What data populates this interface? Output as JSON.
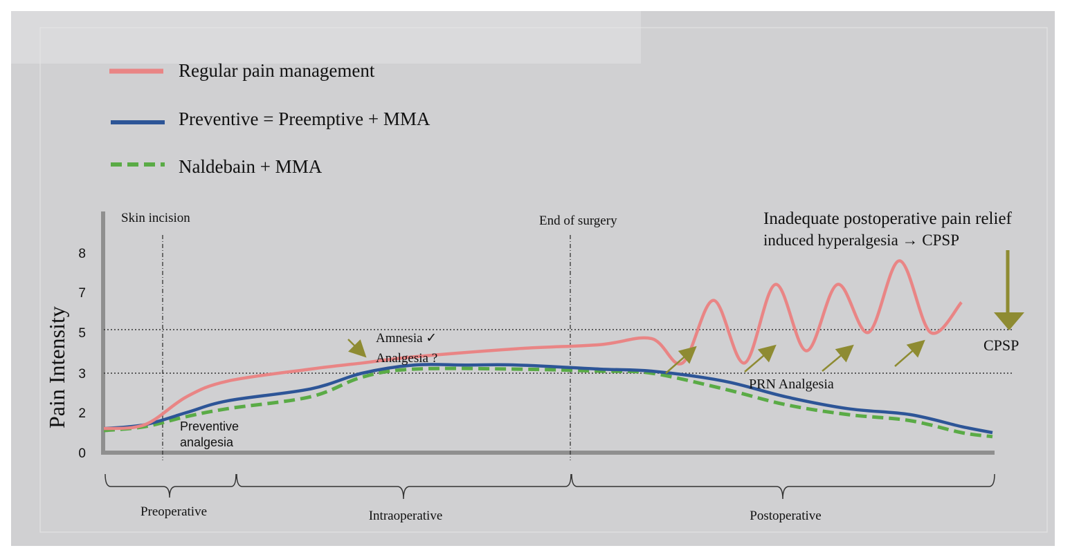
{
  "legend": {
    "regular": "Regular pain management",
    "preventive": "Preventive = Preemptive + MMA",
    "naldebain": "Naldebain + MMA"
  },
  "colors": {
    "regular": "#e98585",
    "preventive": "#2d5597",
    "naldebain": "#5aab46",
    "arrow": "#8e8b32",
    "background": "#d0d0d2"
  },
  "annotations": {
    "skin_incision": "Skin incision",
    "end_of_surgery": "End of surgery",
    "inadequate_line1": "Inadequate postoperative pain relief",
    "inadequate_line2": "induced hyperalgesia → CPSP",
    "amnesia": "Amnesia ✓",
    "analgesia_q": "Analgesia ?",
    "preventive_line1": "Preventive",
    "preventive_line2": "analgesia",
    "prn": "PRN Analgesia",
    "cpsp": "CPSP"
  },
  "phases": {
    "preoperative": "Preoperative",
    "intraoperative": "Intraoperative",
    "postoperative": "Postoperative"
  },
  "chart_data": {
    "type": "line",
    "ylabel": "Pain Intensity",
    "yticks": [
      "0",
      "2",
      "3",
      "5",
      "7",
      "8"
    ],
    "reference_lines": [
      3,
      5
    ],
    "series": [
      {
        "name": "Regular pain management",
        "points": [
          [
            0,
            1.2
          ],
          [
            0.04,
            1.4
          ],
          [
            0.08,
            2.4
          ],
          [
            0.12,
            2.8
          ],
          [
            0.2,
            3.2
          ],
          [
            0.25,
            3.5
          ],
          [
            0.3,
            3.8
          ],
          [
            0.4,
            4.2
          ],
          [
            0.48,
            4.4
          ],
          [
            0.53,
            4.7
          ],
          [
            0.56,
            3.5
          ],
          [
            0.59,
            6.6
          ],
          [
            0.62,
            3.5
          ],
          [
            0.65,
            7.2
          ],
          [
            0.68,
            4.1
          ],
          [
            0.71,
            7.2
          ],
          [
            0.74,
            5.0
          ],
          [
            0.77,
            7.8
          ],
          [
            0.8,
            5.0
          ],
          [
            0.83,
            6.5
          ]
        ]
      },
      {
        "name": "Preventive = Preemptive + MMA",
        "points": [
          [
            0,
            1.2
          ],
          [
            0.04,
            1.4
          ],
          [
            0.08,
            2.0
          ],
          [
            0.12,
            2.3
          ],
          [
            0.2,
            2.6
          ],
          [
            0.25,
            3.0
          ],
          [
            0.3,
            3.4
          ],
          [
            0.35,
            3.4
          ],
          [
            0.4,
            3.4
          ],
          [
            0.48,
            3.2
          ],
          [
            0.53,
            3.1
          ],
          [
            0.6,
            2.8
          ],
          [
            0.66,
            2.4
          ],
          [
            0.72,
            2.1
          ],
          [
            0.78,
            1.9
          ],
          [
            0.83,
            1.3
          ],
          [
            0.86,
            1.0
          ]
        ]
      },
      {
        "name": "Naldebain + MMA",
        "points": [
          [
            0,
            1.1
          ],
          [
            0.04,
            1.3
          ],
          [
            0.08,
            1.8
          ],
          [
            0.12,
            2.1
          ],
          [
            0.2,
            2.4
          ],
          [
            0.25,
            2.9
          ],
          [
            0.3,
            3.2
          ],
          [
            0.4,
            3.2
          ],
          [
            0.48,
            3.1
          ],
          [
            0.53,
            3.0
          ],
          [
            0.6,
            2.6
          ],
          [
            0.66,
            2.2
          ],
          [
            0.72,
            1.9
          ],
          [
            0.78,
            1.6
          ],
          [
            0.83,
            1.0
          ],
          [
            0.86,
            0.8
          ]
        ]
      }
    ]
  }
}
